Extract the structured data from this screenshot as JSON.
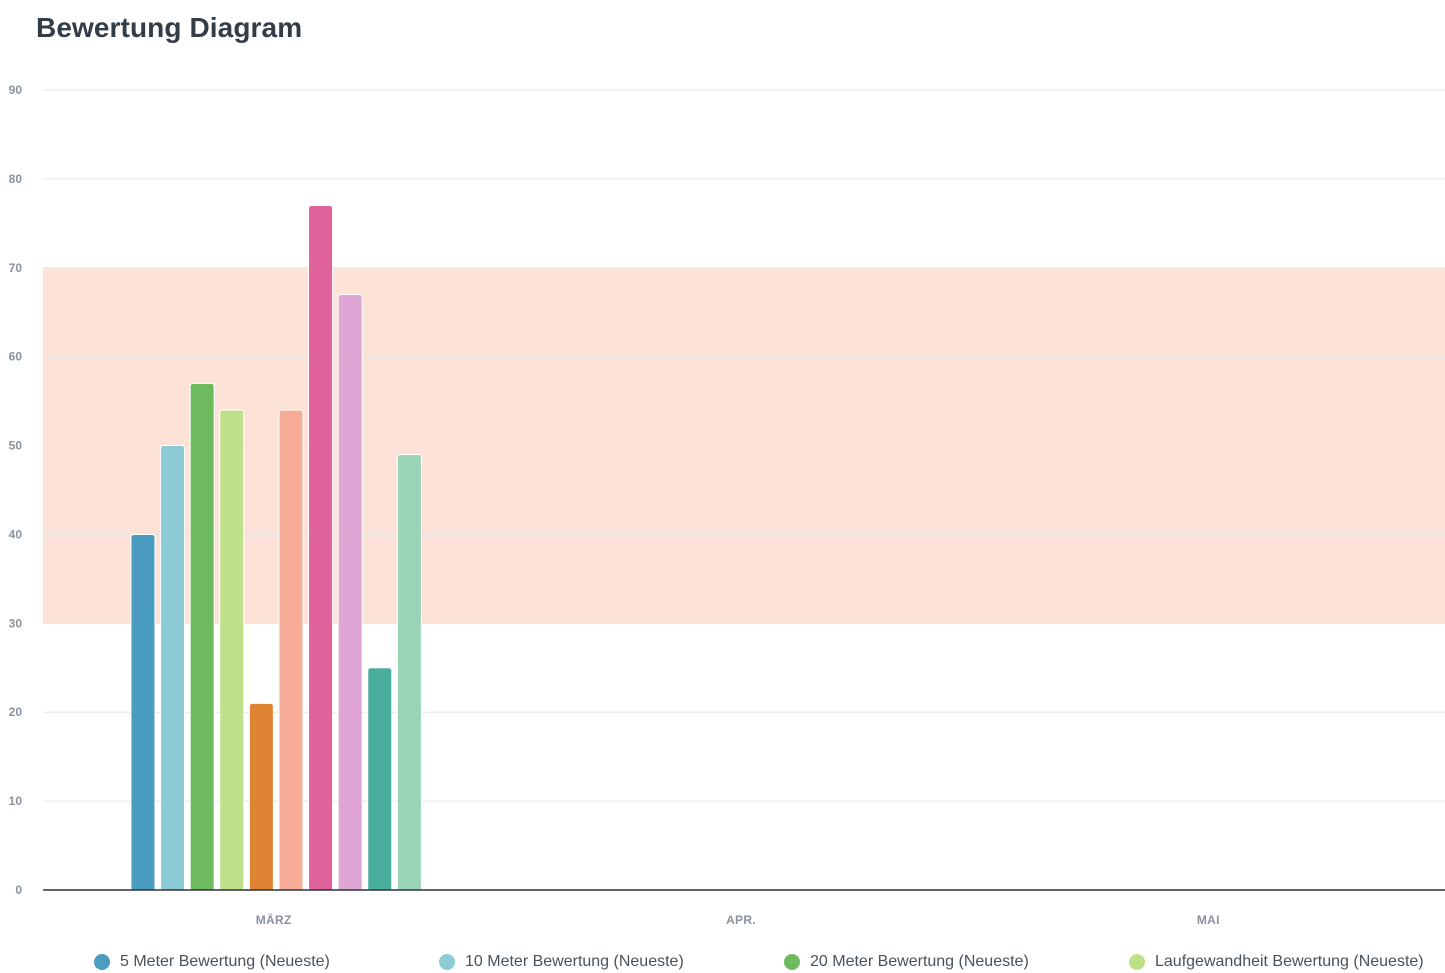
{
  "header": {
    "title": "Bewertung Diagram"
  },
  "chart_data": {
    "type": "bar",
    "title": "Bewertung Diagram",
    "xlabel": "",
    "ylabel": "",
    "ylim": [
      0,
      90
    ],
    "yticks": [
      0,
      10,
      20,
      30,
      40,
      50,
      60,
      70,
      80,
      90
    ],
    "categories": [
      "MÄRZ",
      "APR.",
      "MAI"
    ],
    "grid": true,
    "band": {
      "from": 30,
      "to": 70,
      "color": "#fde3d7"
    },
    "series": [
      {
        "name": "5 Meter Bewertung (Neueste)",
        "color": "#4a9cc0",
        "values": [
          40,
          null,
          null
        ]
      },
      {
        "name": "10 Meter Bewertung (Neueste)",
        "color": "#8ccad6",
        "values": [
          50,
          null,
          null
        ]
      },
      {
        "name": "20 Meter Bewertung (Neueste)",
        "color": "#6dbb5e",
        "values": [
          57,
          null,
          null
        ]
      },
      {
        "name": "Laufgewandheit Bewertung (Neueste)",
        "color": "#bfe08a",
        "values": [
          54,
          null,
          null
        ]
      },
      {
        "name": "",
        "color": "#de8432",
        "values": [
          21,
          null,
          null
        ]
      },
      {
        "name": "",
        "color": "#f6ac96",
        "values": [
          54,
          null,
          null
        ]
      },
      {
        "name": "",
        "color": "#e0629b",
        "values": [
          77,
          null,
          null
        ]
      },
      {
        "name": "",
        "color": "#dfa5d4",
        "values": [
          67,
          null,
          null
        ]
      },
      {
        "name": "",
        "color": "#4aae9c",
        "values": [
          25,
          null,
          null
        ]
      },
      {
        "name": "",
        "color": "#98d4b5",
        "values": [
          49,
          null,
          null
        ]
      }
    ],
    "legend_position": "bottom"
  },
  "legend": {
    "items": [
      {
        "label": "5 Meter Bewertung (Neueste)",
        "color": "#4a9cc0"
      },
      {
        "label": "10 Meter Bewertung (Neueste)",
        "color": "#8ccad6"
      },
      {
        "label": "20 Meter Bewertung (Neueste)",
        "color": "#6dbb5e"
      },
      {
        "label": "Laufgewandheit Bewertung (Neueste)",
        "color": "#bfe08a"
      }
    ]
  }
}
